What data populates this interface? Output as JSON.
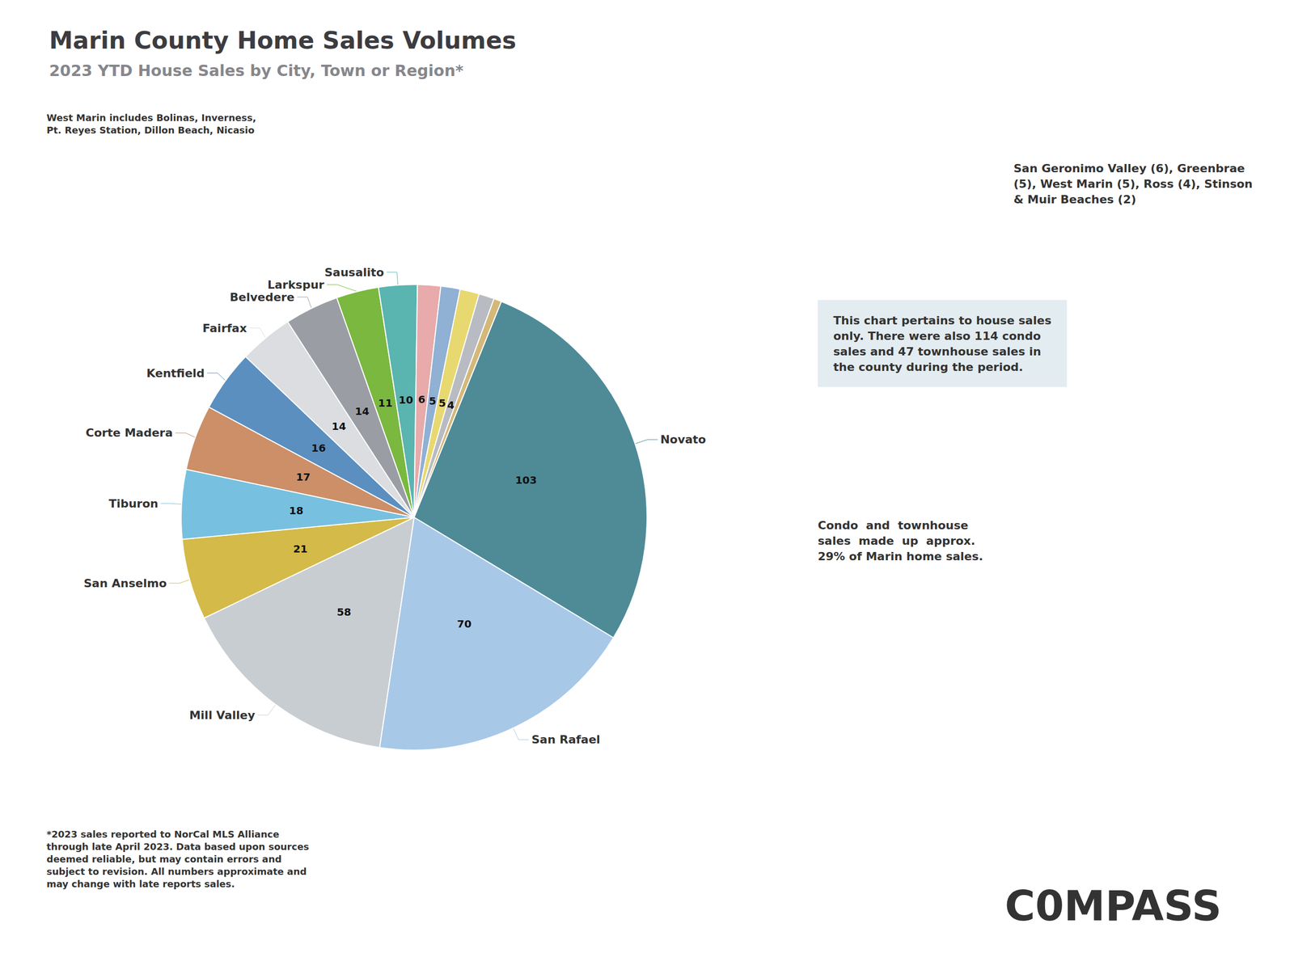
{
  "chart_data": {
    "type": "pie",
    "title": "Marin County Home Sales Volumes",
    "subtitle": "2023 YTD House Sales by City, Town or Region*",
    "categories": [
      "Novato",
      "San Rafael",
      "Mill Valley",
      "San Anselmo",
      "Tiburon",
      "Corte Madera",
      "Kentfield",
      "Fairfax",
      "Belvedere",
      "Larkspur",
      "Sausalito",
      null,
      null,
      null,
      null,
      null
    ],
    "values": [
      103,
      70,
      58,
      21,
      18,
      17,
      16,
      14,
      14,
      11,
      10,
      6,
      5,
      5,
      4,
      2
    ],
    "value_labels": [
      "103",
      "70",
      "58",
      "21",
      "18",
      "17",
      "16",
      "14",
      "14",
      "11",
      "10",
      "6",
      "5",
      "5",
      "4",
      null
    ],
    "colors": [
      "#4e8b97",
      "#a8c8e8",
      "#c8cdd2",
      "#d4ba48",
      "#78c0e0",
      "#cc8f68",
      "#5a8fc0",
      "#dcdde0",
      "#9a9ea4",
      "#7ab840",
      "#5ab4b0",
      "#e8aaaa",
      "#90b0d4",
      "#e8d870",
      "#b8bcc2",
      "#d4b87a"
    ],
    "data_labels": true,
    "annotations": [
      "West Marin includes Bolinas, Inverness,\nPt. Reyes Station, Dillon Beach, Nicasio",
      "San Geronimo Valley (6), Greenbrae\n(5), West Marin (5), Ross (4), Stinson\n& Muir Beaches (2)",
      "This chart pertains to house sales\nonly. There were also 114 condo\nsales and 47 townhouse sales in\nthe county during the period.",
      "Condo  and  townhouse\nsales  made  up  approx.\n29% of Marin home sales.",
      "*2023 sales reported to NorCal MLS Alliance\nthrough late April 2023. Data based upon sources\ndeemed reliable, but may contain errors and\nsubject to revision. All numbers approximate and\nmay change with late reports sales.",
      "C0MPASS"
    ]
  }
}
